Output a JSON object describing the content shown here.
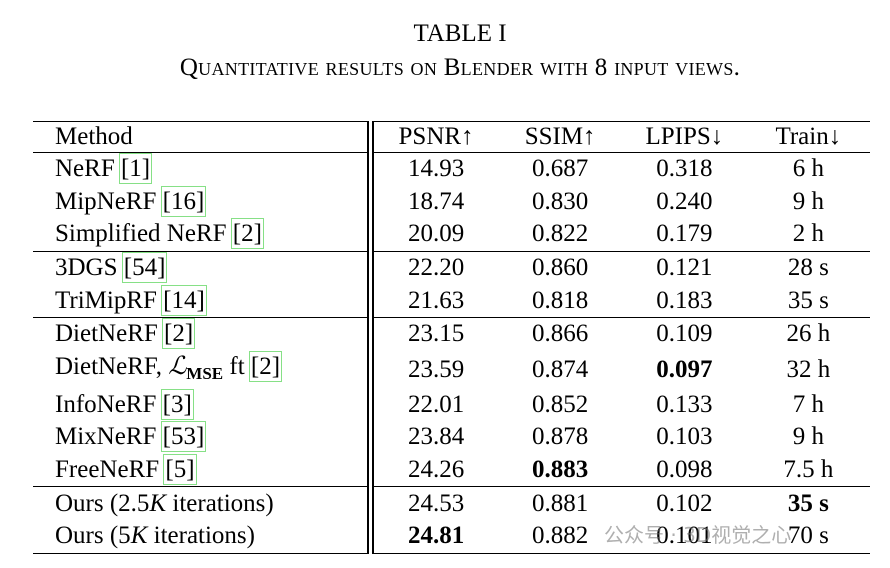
{
  "title": "TABLE I",
  "caption": "Quantitative results on Blender with 8 input views.",
  "table": {
    "header": [
      "Method",
      "PSNR↑",
      "SSIM↑",
      "LPIPS↓",
      "Train↓"
    ],
    "groups": [
      [
        {
          "method": "NeRF",
          "cite": "[1]",
          "cells": [
            "14.93",
            "0.687",
            "0.318",
            "6 h"
          ]
        },
        {
          "method": "MipNeRF",
          "cite": "[16]",
          "cells": [
            "18.74",
            "0.830",
            "0.240",
            "9 h"
          ]
        },
        {
          "method": "Simplified NeRF",
          "cite": "[2]",
          "cells": [
            "20.09",
            "0.822",
            "0.179",
            "2 h"
          ]
        }
      ],
      [
        {
          "method": "3DGS",
          "cite": "[54]",
          "cells": [
            "22.20",
            "0.860",
            "0.121",
            "28 s"
          ]
        },
        {
          "method": "TriMipRF",
          "cite": "[14]",
          "cells": [
            "21.63",
            "0.818",
            "0.183",
            "35 s"
          ]
        }
      ],
      [
        {
          "method": "DietNeRF",
          "cite": "[2]",
          "cells": [
            "23.15",
            "0.866",
            "0.109",
            "26 h"
          ]
        },
        {
          "method": [
            {
              "text": "DietNeRF, "
            },
            {
              "text": "ℒ",
              "style": "script"
            },
            {
              "text": "MSE",
              "style": "sub"
            },
            {
              "text": " ft"
            }
          ],
          "cite": "[2]",
          "cells": [
            "23.59",
            "0.874",
            "0.097",
            "32 h"
          ],
          "bold": [
            2
          ]
        },
        {
          "method": "InfoNeRF",
          "cite": "[3]",
          "cells": [
            "22.01",
            "0.852",
            "0.133",
            "7 h"
          ]
        },
        {
          "method": "MixNeRF",
          "cite": "[53]",
          "cells": [
            "23.84",
            "0.878",
            "0.103",
            "9 h"
          ]
        },
        {
          "method": "FreeNeRF",
          "cite": "[5]",
          "cells": [
            "24.26",
            "0.883",
            "0.098",
            "7.5 h"
          ],
          "bold": [
            1
          ]
        }
      ],
      [
        {
          "method": [
            {
              "text": "Ours (2.5"
            },
            {
              "text": "K",
              "style": "italic"
            },
            {
              "text": " iterations)"
            }
          ],
          "cells": [
            "24.53",
            "0.881",
            "0.102",
            "35 s"
          ],
          "bold": [
            3
          ]
        },
        {
          "method": [
            {
              "text": "Ours (5"
            },
            {
              "text": "K",
              "style": "italic"
            },
            {
              "text": " iterations)"
            }
          ],
          "cells": [
            "24.81",
            "0.882",
            "0.101",
            "70 s"
          ],
          "bold": [
            0
          ]
        }
      ]
    ]
  },
  "watermark": "公众号 · 3D视觉之心"
}
